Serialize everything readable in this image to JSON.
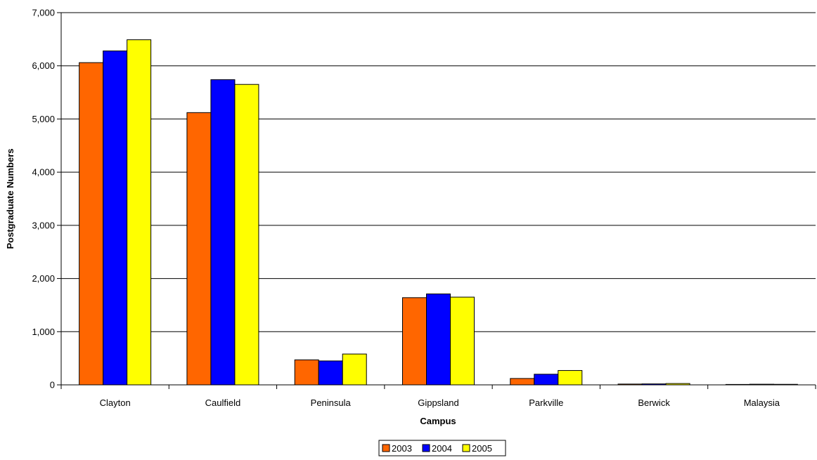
{
  "chart_data": {
    "type": "bar",
    "categories": [
      "Clayton",
      "Caulfield",
      "Peninsula",
      "Gippsland",
      "Parkville",
      "Berwick",
      "Malaysia"
    ],
    "series": [
      {
        "name": "2003",
        "color": "#FF6600",
        "values": [
          6060,
          5120,
          470,
          1640,
          120,
          15,
          8
        ]
      },
      {
        "name": "2004",
        "color": "#0000FF",
        "values": [
          6280,
          5740,
          450,
          1710,
          200,
          18,
          12
        ]
      },
      {
        "name": "2005",
        "color": "#FFFF00",
        "values": [
          6490,
          5650,
          580,
          1650,
          270,
          25,
          10
        ]
      }
    ],
    "xlabel": "Campus",
    "ylabel": "Postgraduate Numbers",
    "ylim": [
      0,
      7000
    ],
    "yticks": [
      0,
      1000,
      2000,
      3000,
      4000,
      5000,
      6000,
      7000
    ],
    "ytick_labels": [
      "0",
      "1,000",
      "2,000",
      "3,000",
      "4,000",
      "5,000",
      "6,000",
      "7,000"
    ],
    "grid": true,
    "legend_position": "bottom-center"
  }
}
